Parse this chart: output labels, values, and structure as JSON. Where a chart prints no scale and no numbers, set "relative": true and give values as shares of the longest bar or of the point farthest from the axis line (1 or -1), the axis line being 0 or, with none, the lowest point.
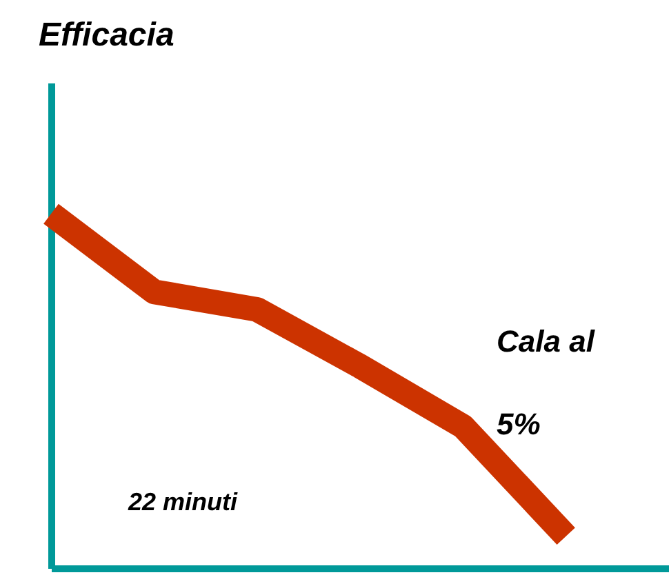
{
  "chart_data": {
    "type": "line",
    "title": "Efficacia",
    "relative": true,
    "grid": false,
    "categories": [
      null,
      null,
      null,
      null,
      null,
      null
    ],
    "series": [
      {
        "color": "#cc3300",
        "values": [
          1,
          0.78,
          0.73,
          0.57,
          0.4,
          0.09
        ]
      }
    ],
    "annotations": [
      "Cala al",
      "5%",
      "22 minuti"
    ]
  }
}
